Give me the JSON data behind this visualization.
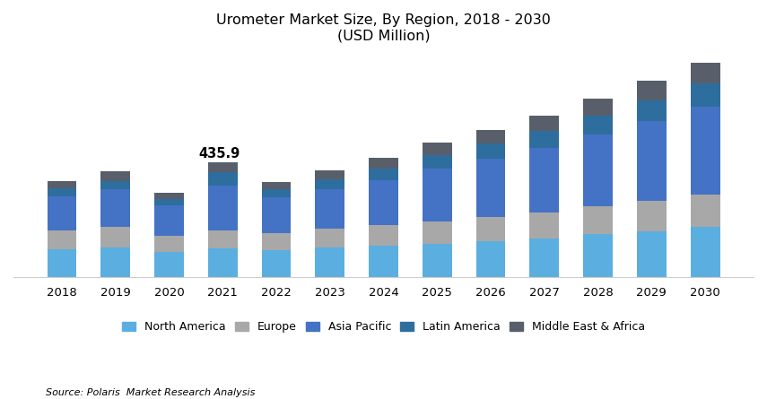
{
  "title_line1": "Urometer Market Size, By Region, 2018 - 2030",
  "title_line2": "(USD Million)",
  "source": "Source: Polaris  Market Research Analysis",
  "years": [
    2018,
    2019,
    2020,
    2021,
    2022,
    2023,
    2024,
    2025,
    2026,
    2027,
    2028,
    2029,
    2030
  ],
  "segments": [
    "North America",
    "Europe",
    "Asia Pacific",
    "Latin America",
    "Middle East & Africa"
  ],
  "colors": [
    "#5BAEE0",
    "#A8A8A8",
    "#4472C4",
    "#2E6E9E",
    "#585F6A"
  ],
  "data": {
    "North America": [
      105,
      112,
      95,
      108,
      102,
      112,
      118,
      128,
      138,
      148,
      162,
      175,
      190
    ],
    "Europe": [
      72,
      78,
      62,
      70,
      65,
      73,
      80,
      84,
      90,
      96,
      105,
      114,
      124
    ],
    "Asia Pacific": [
      130,
      142,
      115,
      168,
      135,
      148,
      170,
      198,
      220,
      245,
      272,
      300,
      330
    ],
    "Latin America": [
      28,
      32,
      24,
      52,
      30,
      36,
      44,
      52,
      58,
      65,
      72,
      80,
      88
    ],
    "Middle East & Africa": [
      30,
      35,
      25,
      38,
      28,
      34,
      40,
      46,
      52,
      58,
      65,
      72,
      80
    ]
  },
  "annotation_year": 2021,
  "annotation_text": "435.9",
  "bar_width": 0.55,
  "ylim_max": 850,
  "background_color": "#FFFFFF",
  "title_fontsize": 11.5,
  "annotation_fontsize": 10.5,
  "tick_fontsize": 9.5,
  "legend_fontsize": 9
}
